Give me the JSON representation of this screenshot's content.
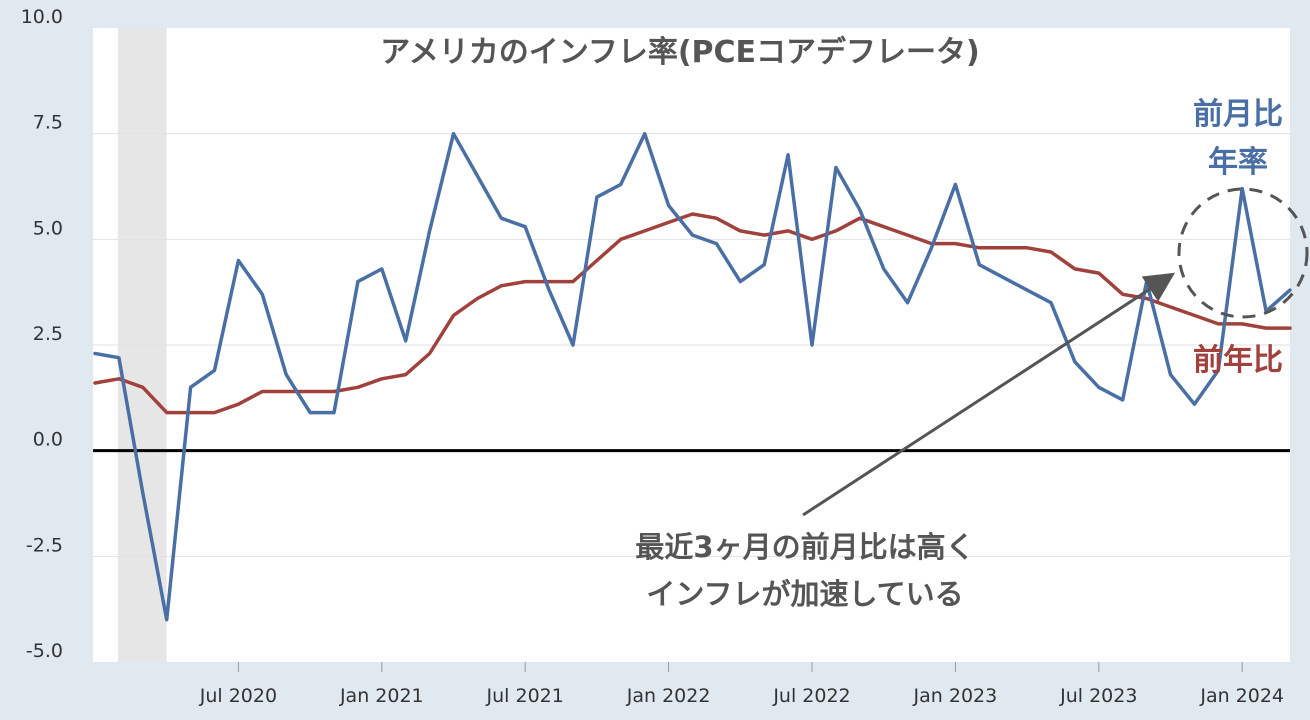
{
  "chart_data": {
    "type": "line",
    "title": "アメリカのインフレ率(PCEコアデフレータ)",
    "xlabel": "",
    "ylabel": "",
    "ylim": [
      -5.0,
      10.0
    ],
    "yticks": [
      "10.0",
      "7.5",
      "5.0",
      "2.5",
      "0.0",
      "-2.5",
      "-5.0"
    ],
    "xticks": [
      {
        "date": "2020-07",
        "label": "Jul 2020"
      },
      {
        "date": "2021-01",
        "label": "Jan 2021"
      },
      {
        "date": "2021-07",
        "label": "Jul 2021"
      },
      {
        "date": "2022-01",
        "label": "Jan 2022"
      },
      {
        "date": "2022-07",
        "label": "Jul 2022"
      },
      {
        "date": "2023-01",
        "label": "Jan 2023"
      },
      {
        "date": "2023-07",
        "label": "Jul 2023"
      },
      {
        "date": "2024-01",
        "label": "Jan 2024"
      }
    ],
    "x_start": "2020-01",
    "recession": {
      "start": "2020-02",
      "end": "2020-04"
    },
    "grid": true,
    "series": [
      {
        "name": "前月比 年率",
        "color": "#4a6fa5",
        "values": [
          2.3,
          2.2,
          -1.0,
          -4.0,
          1.5,
          1.9,
          4.5,
          3.7,
          1.8,
          0.9,
          0.9,
          4.0,
          4.3,
          2.6,
          5.2,
          7.5,
          6.5,
          5.5,
          5.3,
          3.8,
          2.5,
          6.0,
          6.3,
          7.5,
          5.8,
          5.1,
          4.9,
          4.0,
          4.4,
          7.0,
          2.5,
          6.7,
          5.7,
          4.3,
          3.5,
          4.8,
          6.3,
          4.4,
          4.1,
          3.8,
          3.5,
          2.1,
          1.5,
          1.2,
          4.0,
          1.8,
          1.1,
          1.9,
          6.2,
          3.3,
          3.8
        ]
      },
      {
        "name": "前年比",
        "color": "#a0413c",
        "values": [
          1.6,
          1.7,
          1.5,
          0.9,
          0.9,
          0.9,
          1.1,
          1.4,
          1.4,
          1.4,
          1.4,
          1.5,
          1.7,
          1.8,
          2.3,
          3.2,
          3.6,
          3.9,
          4.0,
          4.0,
          4.0,
          4.5,
          5.0,
          5.2,
          5.4,
          5.6,
          5.5,
          5.2,
          5.1,
          5.2,
          5.0,
          5.2,
          5.5,
          5.3,
          5.1,
          4.9,
          4.9,
          4.8,
          4.8,
          4.8,
          4.7,
          4.3,
          4.2,
          3.7,
          3.6,
          3.4,
          3.2,
          3.0,
          3.0,
          2.9,
          2.9
        ]
      }
    ],
    "legend": {
      "mom_line1": "前月比",
      "mom_line2": "年率",
      "yoy": "前年比"
    },
    "annotation": {
      "line1": "最近3ヶ月の前月比は高く",
      "line2": "インフレが加速している"
    }
  }
}
